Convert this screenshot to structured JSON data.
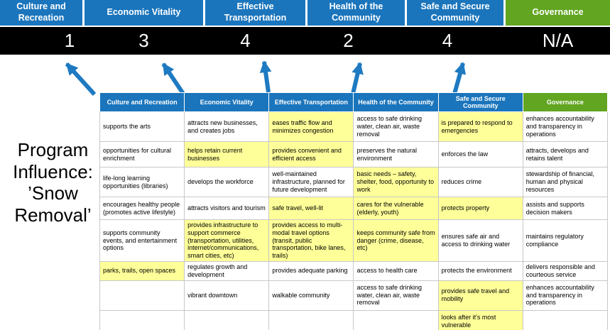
{
  "slide_title": "Program Influence: ’Snow Removal’",
  "pillars": [
    {
      "label": "Culture and Recreation",
      "score": "1"
    },
    {
      "label": "Economic Vitality",
      "score": "3"
    },
    {
      "label": "Effective Transportation",
      "score": "4"
    },
    {
      "label": "Health of the Community",
      "score": "2"
    },
    {
      "label": "Safe and Secure Community",
      "score": "4"
    },
    {
      "label": "Governance",
      "score": "N/A"
    }
  ],
  "table": {
    "headers": [
      {
        "label": "Culture and Recreation",
        "accent": "blue"
      },
      {
        "label": "Economic Vitality",
        "accent": "blue"
      },
      {
        "label": "Effective Transportation",
        "accent": "blue"
      },
      {
        "label": "Health of the Community",
        "accent": "blue"
      },
      {
        "label": "Safe and Secure Community",
        "accent": "blue"
      },
      {
        "label": "Governance",
        "accent": "green"
      }
    ],
    "rows": [
      [
        {
          "text": "supports the arts",
          "highlight": false
        },
        {
          "text": "attracts new businesses, and creates jobs",
          "highlight": false
        },
        {
          "text": "eases traffic flow and minimizes congestion",
          "highlight": true
        },
        {
          "text": "access to safe drinking water, clean air, waste removal",
          "highlight": false
        },
        {
          "text": "is prepared to respond to emergencies",
          "highlight": true
        },
        {
          "text": "enhances accountability and transparency in operations",
          "highlight": false
        }
      ],
      [
        {
          "text": "opportunities for cultural enrichment",
          "highlight": false
        },
        {
          "text": "helps retain current businesses",
          "highlight": true
        },
        {
          "text": "provides convenient and efficient access",
          "highlight": true
        },
        {
          "text": "preserves the natural environment",
          "highlight": false
        },
        {
          "text": "enforces the law",
          "highlight": false
        },
        {
          "text": "attracts, develops and retains talent",
          "highlight": false
        }
      ],
      [
        {
          "text": "life-long learning opportunities (libraries)",
          "highlight": false
        },
        {
          "text": "develops the workforce",
          "highlight": false
        },
        {
          "text": "well-maintained infrastructure, planned for future development",
          "highlight": false
        },
        {
          "text": "basic needs – safety, shelter, food, opportunity to work",
          "highlight": true
        },
        {
          "text": "reduces crime",
          "highlight": false
        },
        {
          "text": "stewardship of financial, human and physical resources",
          "highlight": false
        }
      ],
      [
        {
          "text": "encourages healthy people (promotes active lifestyle)",
          "highlight": false
        },
        {
          "text": "attracts visitors and tourism",
          "highlight": false
        },
        {
          "text": "safe travel, well-lit",
          "highlight": true
        },
        {
          "text": "cares for the vulnerable (elderly, youth)",
          "highlight": true
        },
        {
          "text": "protects property",
          "highlight": true
        },
        {
          "text": "assists and supports decision makers",
          "highlight": false
        }
      ],
      [
        {
          "text": "supports community events, and entertainment options",
          "highlight": false
        },
        {
          "text": "provides infrastructure to support commerce (transportation, utilities, internet/communications, smart cities, etc)",
          "highlight": true
        },
        {
          "text": "provides access to multi-modal travel options (transit, public transportation, bike lanes, trails)",
          "highlight": true
        },
        {
          "text": "keeps community safe from danger (crime, disease, etc)",
          "highlight": true
        },
        {
          "text": "ensures safe air and access to drinking water",
          "highlight": false
        },
        {
          "text": "maintains regulatory compliance",
          "highlight": false
        }
      ],
      [
        {
          "text": "parks, trails, open spaces",
          "highlight": true
        },
        {
          "text": "regulates growth and development",
          "highlight": false
        },
        {
          "text": "provides adequate parking",
          "highlight": false
        },
        {
          "text": "access to health care",
          "highlight": false
        },
        {
          "text": "protects the environment",
          "highlight": false
        },
        {
          "text": "delivers responsible and courteous service",
          "highlight": false
        }
      ],
      [
        {
          "text": "",
          "highlight": false
        },
        {
          "text": "vibrant downtown",
          "highlight": false
        },
        {
          "text": "walkable community",
          "highlight": false
        },
        {
          "text": "access to safe drinking water, clean air, waste removal",
          "highlight": false
        },
        {
          "text": "provides safe travel and mobility",
          "highlight": true
        },
        {
          "text": "enhances accountability and transparency in operations",
          "highlight": false
        }
      ],
      [
        {
          "text": "",
          "highlight": false
        },
        {
          "text": "",
          "highlight": false
        },
        {
          "text": "",
          "highlight": false
        },
        {
          "text": "",
          "highlight": false
        },
        {
          "text": "looks after it's most vulnerable",
          "highlight": true
        },
        {
          "text": "",
          "highlight": false
        }
      ]
    ]
  },
  "colors": {
    "pillar_blue": "#1b75bc",
    "pillar_green": "#61a521",
    "score_band_background": "#000000",
    "highlight_yellow": "#ffff99",
    "arrow_blue": "#1e7ac1"
  }
}
